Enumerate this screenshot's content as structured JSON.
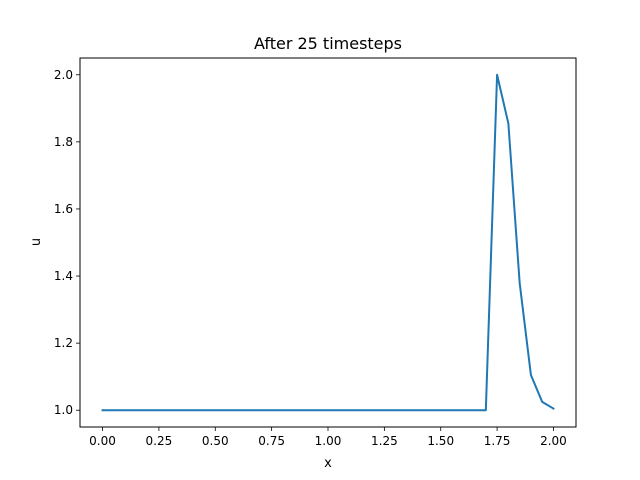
{
  "chart_data": {
    "type": "line",
    "title": "After 25 timesteps",
    "xlabel": "x",
    "ylabel": "u",
    "xlim": [
      -0.1,
      2.1
    ],
    "ylim": [
      0.95,
      2.05
    ],
    "xticks": [
      0.0,
      0.25,
      0.5,
      0.75,
      1.0,
      1.25,
      1.5,
      1.75,
      2.0
    ],
    "xtick_labels": [
      "0.00",
      "0.25",
      "0.50",
      "0.75",
      "1.00",
      "1.25",
      "1.50",
      "1.75",
      "2.00"
    ],
    "yticks": [
      1.0,
      1.2,
      1.4,
      1.6,
      1.8,
      2.0
    ],
    "ytick_labels": [
      "1.0",
      "1.2",
      "1.4",
      "1.6",
      "1.8",
      "2.0"
    ],
    "grid": false,
    "series": [
      {
        "color": "#1f77b4",
        "x": [
          0.0,
          0.05,
          0.1,
          0.15,
          0.2,
          0.25,
          0.3,
          0.35,
          0.4,
          0.45,
          0.5,
          0.55,
          0.6,
          0.65,
          0.7,
          0.75,
          0.8,
          0.85,
          0.9,
          0.95,
          1.0,
          1.05,
          1.1,
          1.15,
          1.2,
          1.25,
          1.3,
          1.35,
          1.4,
          1.45,
          1.5,
          1.55,
          1.6,
          1.65,
          1.7,
          1.75,
          1.8,
          1.85,
          1.9,
          1.95,
          2.0
        ],
        "y": [
          1.0,
          1.0,
          1.0,
          1.0,
          1.0,
          1.0,
          1.0,
          1.0,
          1.0,
          1.0,
          1.0,
          1.0,
          1.0,
          1.0,
          1.0,
          1.0,
          1.0,
          1.0,
          1.0,
          1.0,
          1.0,
          1.0,
          1.0,
          1.0,
          1.0,
          1.0,
          1.0,
          1.0,
          1.0,
          1.0,
          1.0,
          1.0,
          1.0,
          1.0,
          1.0,
          2.0,
          1.855,
          1.38,
          1.105,
          1.025,
          1.005
        ]
      }
    ]
  }
}
